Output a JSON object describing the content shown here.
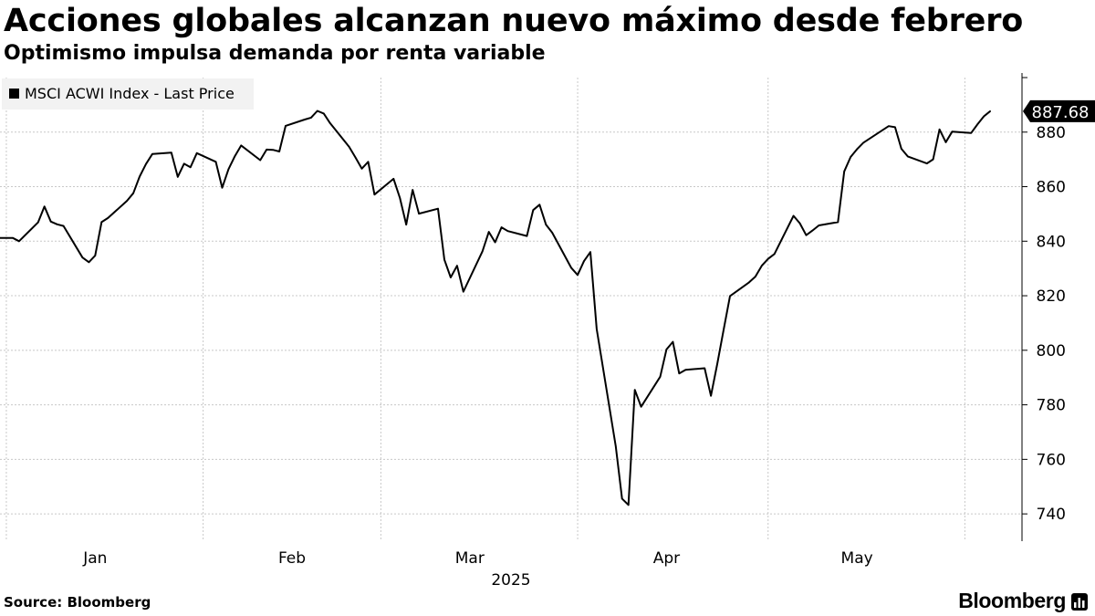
{
  "header": {
    "title": "Acciones globales alcanzan nuevo máximo desde febrero",
    "subtitle": "Optimismo impulsa demanda por renta variable"
  },
  "footer": {
    "source": "Source: Bloomberg",
    "brand": "Bloomberg",
    "brand_icon": "bloomberg-terminal-icon"
  },
  "chart_data": {
    "type": "line",
    "title": "Acciones globales alcanzan nuevo máximo desde febrero",
    "subtitle": "Optimismo impulsa demanda por renta variable",
    "legend": {
      "label": "MSCI ACWI Index - Last Price",
      "placement": "top-left",
      "color": "#000000"
    },
    "last_value_label": "887.68",
    "xlabel": "2025",
    "x_tick_labels": [
      "Jan",
      "Feb",
      "Mar",
      "Apr",
      "May"
    ],
    "x_tick_dates": [
      "2025-01-15",
      "2025-02-15",
      "2025-03-15",
      "2025-04-15",
      "2025-05-15"
    ],
    "month_boundaries": [
      "2025-01-01",
      "2025-02-01",
      "2025-03-01",
      "2025-04-01",
      "2025-05-01",
      "2025-06-01"
    ],
    "xlim": [
      "2024-12-31",
      "2025-06-10"
    ],
    "ylim": [
      730,
      900
    ],
    "y_ticks": [
      740,
      760,
      780,
      800,
      820,
      840,
      860,
      880
    ],
    "y_axis_position": "right",
    "grid": true,
    "series": [
      {
        "name": "MSCI ACWI Index - Last Price",
        "color": "#000000",
        "points": [
          [
            "2024-12-31",
            841.2
          ],
          [
            "2025-01-02",
            841.2
          ],
          [
            "2025-01-03",
            840.0
          ],
          [
            "2025-01-06",
            846.9
          ],
          [
            "2025-01-07",
            852.7
          ],
          [
            "2025-01-08",
            847.2
          ],
          [
            "2025-01-09",
            846.2
          ],
          [
            "2025-01-10",
            845.6
          ],
          [
            "2025-01-13",
            834.0
          ],
          [
            "2025-01-14",
            832.3
          ],
          [
            "2025-01-15",
            834.7
          ],
          [
            "2025-01-16",
            847.0
          ],
          [
            "2025-01-17",
            848.5
          ],
          [
            "2025-01-20",
            854.8
          ],
          [
            "2025-01-21",
            857.6
          ],
          [
            "2025-01-22",
            863.7
          ],
          [
            "2025-01-23",
            868.3
          ],
          [
            "2025-01-24",
            872.0
          ],
          [
            "2025-01-27",
            872.5
          ],
          [
            "2025-01-28",
            863.6
          ],
          [
            "2025-01-29",
            868.4
          ],
          [
            "2025-01-30",
            867.1
          ],
          [
            "2025-01-31",
            872.3
          ],
          [
            "2025-02-03",
            869.1
          ],
          [
            "2025-02-04",
            859.6
          ],
          [
            "2025-02-05",
            866.4
          ],
          [
            "2025-02-06",
            871.2
          ],
          [
            "2025-02-07",
            875.1
          ],
          [
            "2025-02-10",
            869.7
          ],
          [
            "2025-02-11",
            873.6
          ],
          [
            "2025-02-12",
            873.5
          ],
          [
            "2025-02-13",
            872.9
          ],
          [
            "2025-02-14",
            882.3
          ],
          [
            "2025-02-17",
            884.6
          ],
          [
            "2025-02-18",
            885.3
          ],
          [
            "2025-02-19",
            887.8
          ],
          [
            "2025-02-20",
            886.8
          ],
          [
            "2025-02-21",
            883.3
          ],
          [
            "2025-02-24",
            874.6
          ],
          [
            "2025-02-25",
            870.7
          ],
          [
            "2025-02-26",
            866.6
          ],
          [
            "2025-02-27",
            869.1
          ],
          [
            "2025-02-28",
            857.1
          ],
          [
            "2025-03-03",
            862.9
          ],
          [
            "2025-03-04",
            855.8
          ],
          [
            "2025-03-05",
            846.1
          ],
          [
            "2025-03-06",
            858.8
          ],
          [
            "2025-03-07",
            850.1
          ],
          [
            "2025-03-10",
            851.9
          ],
          [
            "2025-03-11",
            833.2
          ],
          [
            "2025-03-12",
            826.7
          ],
          [
            "2025-03-13",
            831.0
          ],
          [
            "2025-03-14",
            821.5
          ],
          [
            "2025-03-17",
            836.3
          ],
          [
            "2025-03-18",
            843.4
          ],
          [
            "2025-03-19",
            839.6
          ],
          [
            "2025-03-20",
            845.1
          ],
          [
            "2025-03-21",
            843.7
          ],
          [
            "2025-03-24",
            841.9
          ],
          [
            "2025-03-25",
            851.4
          ],
          [
            "2025-03-26",
            853.4
          ],
          [
            "2025-03-27",
            846.1
          ],
          [
            "2025-03-28",
            843.1
          ],
          [
            "2025-03-31",
            830.2
          ],
          [
            "2025-04-01",
            827.6
          ],
          [
            "2025-04-02",
            832.7
          ],
          [
            "2025-04-03",
            836.0
          ],
          [
            "2025-04-04",
            807.8
          ],
          [
            "2025-04-07",
            764.8
          ],
          [
            "2025-04-08",
            745.6
          ],
          [
            "2025-04-09",
            743.3
          ],
          [
            "2025-04-10",
            785.5
          ],
          [
            "2025-04-11",
            779.3
          ],
          [
            "2025-04-14",
            790.3
          ],
          [
            "2025-04-15",
            800.3
          ],
          [
            "2025-04-16",
            803.1
          ],
          [
            "2025-04-17",
            791.5
          ],
          [
            "2025-04-18",
            792.8
          ],
          [
            "2025-04-21",
            793.4
          ],
          [
            "2025-04-22",
            783.3
          ],
          [
            "2025-04-23",
            795.1
          ],
          [
            "2025-04-24",
            807.5
          ],
          [
            "2025-04-25",
            819.9
          ],
          [
            "2025-04-28",
            824.9
          ],
          [
            "2025-04-29",
            827.0
          ],
          [
            "2025-04-30",
            831.0
          ],
          [
            "2025-05-01",
            833.5
          ],
          [
            "2025-05-02",
            835.3
          ],
          [
            "2025-05-05",
            849.3
          ],
          [
            "2025-05-06",
            846.6
          ],
          [
            "2025-05-07",
            842.2
          ],
          [
            "2025-05-08",
            843.9
          ],
          [
            "2025-05-09",
            845.8
          ],
          [
            "2025-05-12",
            847.0
          ],
          [
            "2025-05-13",
            865.6
          ],
          [
            "2025-05-14",
            870.9
          ],
          [
            "2025-05-15",
            873.7
          ],
          [
            "2025-05-16",
            876.1
          ],
          [
            "2025-05-19",
            880.7
          ],
          [
            "2025-05-20",
            882.2
          ],
          [
            "2025-05-21",
            881.8
          ],
          [
            "2025-05-22",
            873.9
          ],
          [
            "2025-05-23",
            871.1
          ],
          [
            "2025-05-26",
            868.5
          ],
          [
            "2025-05-27",
            870.0
          ],
          [
            "2025-05-28",
            881.0
          ],
          [
            "2025-05-29",
            876.3
          ],
          [
            "2025-05-30",
            880.2
          ],
          [
            "2025-06-02",
            879.7
          ],
          [
            "2025-06-03",
            882.9
          ],
          [
            "2025-06-04",
            885.8
          ],
          [
            "2025-06-05",
            887.68
          ]
        ]
      }
    ]
  }
}
